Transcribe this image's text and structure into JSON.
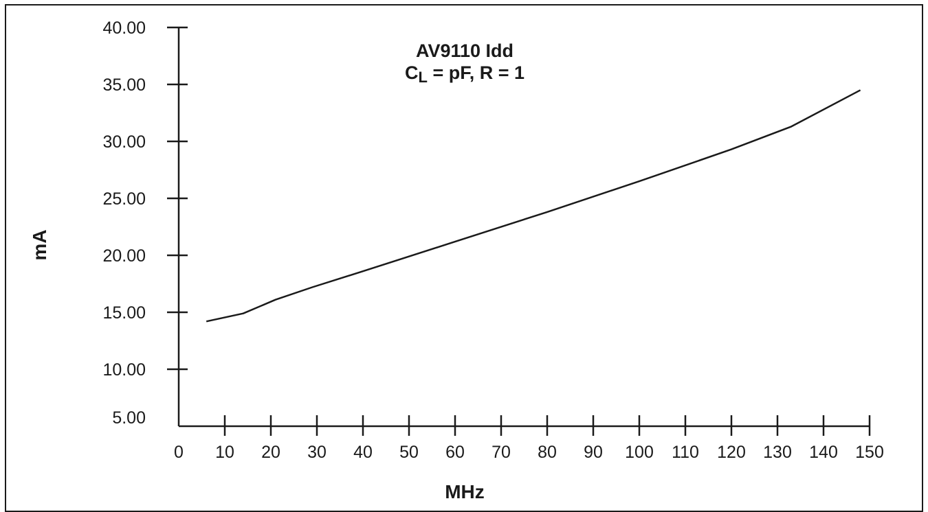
{
  "chart_data": {
    "type": "line",
    "title": "AV9110 Idd",
    "subtitle": {
      "prefix": "C",
      "subscript": "L",
      "suffix": " = pF, R = 1"
    },
    "xlabel": "MHz",
    "ylabel": "mA",
    "xlim": [
      0,
      150
    ],
    "ylim": [
      5,
      40
    ],
    "x_ticks": [
      0,
      10,
      20,
      30,
      40,
      50,
      60,
      70,
      80,
      90,
      100,
      110,
      120,
      130,
      140,
      150
    ],
    "x_tick_labels": [
      "0",
      "10",
      "20",
      "30",
      "40",
      "50",
      "60",
      "70",
      "80",
      "90",
      "100",
      "110",
      "120",
      "130",
      "140",
      "150"
    ],
    "y_ticks": [
      5,
      10,
      15,
      20,
      25,
      30,
      35,
      40
    ],
    "y_tick_labels": [
      "5.00",
      "10.00",
      "15.00",
      "20.00",
      "25.00",
      "30.00",
      "35.00",
      "40.00"
    ],
    "grid": false,
    "series": [
      {
        "x": [
          6,
          14,
          21,
          29,
          40,
          60,
          80,
          100,
          120,
          133,
          148
        ],
        "y": [
          14.2,
          14.9,
          16.1,
          17.2,
          18.6,
          21.2,
          23.8,
          26.5,
          29.3,
          31.3,
          34.5
        ]
      }
    ],
    "colors": {
      "line": "#1a1a1a",
      "axis": "#1a1a1a",
      "text": "#1a1a1a"
    }
  }
}
